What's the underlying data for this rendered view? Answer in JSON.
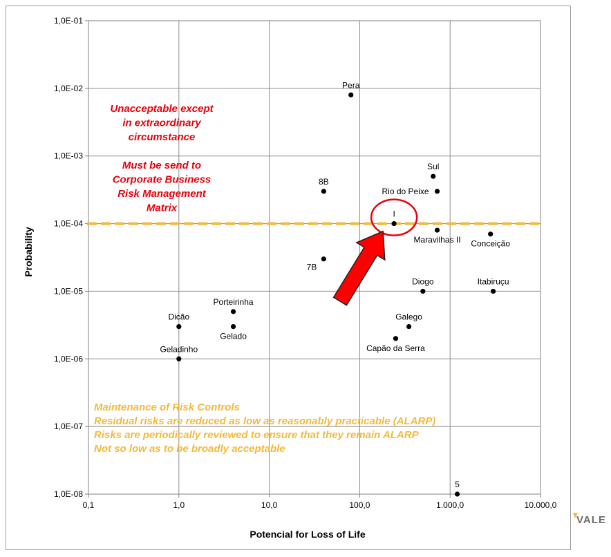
{
  "chart_data": {
    "type": "scatter",
    "xlabel": "Potencial for Loss of Life",
    "ylabel": "Probability",
    "x_scale": "log",
    "y_scale": "log",
    "xlim": [
      0.1,
      10000
    ],
    "ylim": [
      1e-08,
      0.1
    ],
    "grid": true,
    "x_ticks": [
      {
        "value": 0.1,
        "label": "0,1"
      },
      {
        "value": 1,
        "label": "1,0"
      },
      {
        "value": 10,
        "label": "10,0"
      },
      {
        "value": 100,
        "label": "100,0"
      },
      {
        "value": 1000,
        "label": "1.000,0"
      },
      {
        "value": 10000,
        "label": "10.000,0"
      }
    ],
    "y_ticks": [
      {
        "value": 0.1,
        "label": "1,0E-01"
      },
      {
        "value": 0.01,
        "label": "1,0E-02"
      },
      {
        "value": 0.001,
        "label": "1,0E-03"
      },
      {
        "value": 0.0001,
        "label": "1,0E-04"
      },
      {
        "value": 1e-05,
        "label": "1,0E-05"
      },
      {
        "value": 1e-06,
        "label": "1,0E-06"
      },
      {
        "value": 1e-07,
        "label": "1,0E-07"
      },
      {
        "value": 1e-08,
        "label": "1,0E-08"
      }
    ],
    "threshold": {
      "y": 0.0001,
      "color": "#f5b93a",
      "style": "dashed"
    },
    "points": [
      {
        "label": "Pera",
        "x": 80,
        "y": 0.008,
        "label_pos": "above"
      },
      {
        "label": "8B",
        "x": 40,
        "y": 0.0003,
        "label_pos": "above"
      },
      {
        "label": "Sul",
        "x": 650,
        "y": 0.0005,
        "label_pos": "above"
      },
      {
        "label": "Rio do Peixe",
        "x": 720,
        "y": 0.0003,
        "label_pos": "left"
      },
      {
        "label": "I",
        "x": 240,
        "y": 0.0001,
        "label_pos": "above"
      },
      {
        "label": "Maravilhas II",
        "x": 720,
        "y": 8e-05,
        "label_pos": "below"
      },
      {
        "label": "Conceição",
        "x": 2800,
        "y": 7e-05,
        "label_pos": "below"
      },
      {
        "label": "7B",
        "x": 40,
        "y": 3e-05,
        "label_pos": "belowleft"
      },
      {
        "label": "Diogo",
        "x": 500,
        "y": 1e-05,
        "label_pos": "above"
      },
      {
        "label": "Itabiruçu",
        "x": 3000,
        "y": 1e-05,
        "label_pos": "above"
      },
      {
        "label": "Porteirinha",
        "x": 4,
        "y": 5e-06,
        "label_pos": "above"
      },
      {
        "label": "Dicão",
        "x": 1,
        "y": 3e-06,
        "label_pos": "above"
      },
      {
        "label": "Gelado",
        "x": 4,
        "y": 3e-06,
        "label_pos": "below"
      },
      {
        "label": "Galego",
        "x": 350,
        "y": 3e-06,
        "label_pos": "above"
      },
      {
        "label": "Capão da Serra",
        "x": 250,
        "y": 2e-06,
        "label_pos": "below"
      },
      {
        "label": "Geladinho",
        "x": 1,
        "y": 1e-06,
        "label_pos": "above"
      },
      {
        "label": "5",
        "x": 1200,
        "y": 1e-08,
        "label_pos": "above"
      }
    ],
    "highlight": {
      "point": "I",
      "circle_color": "#e8000b",
      "arrow_color": "#ff0000"
    },
    "annotations": {
      "red_lines": [
        "Unacceptable except",
        "in extraordinary",
        "circumstance",
        "",
        "Must be send to",
        "Corporate Business",
        "Risk Management",
        "Matrix"
      ],
      "red_color": "#e8000b",
      "yellow_lines": [
        "Maintenance of Risk Controls",
        "Residual risks are reduced as low as reasonably practicable (ALARP)",
        "Risks are periodically reviewed to ensure that they remain ALARP",
        "Not so low as to be broadly acceptable"
      ],
      "yellow_color": "#f5b93a"
    }
  },
  "brand": {
    "name": "VALE",
    "color": "#6a6a6a",
    "accent": "#f5b93a"
  }
}
